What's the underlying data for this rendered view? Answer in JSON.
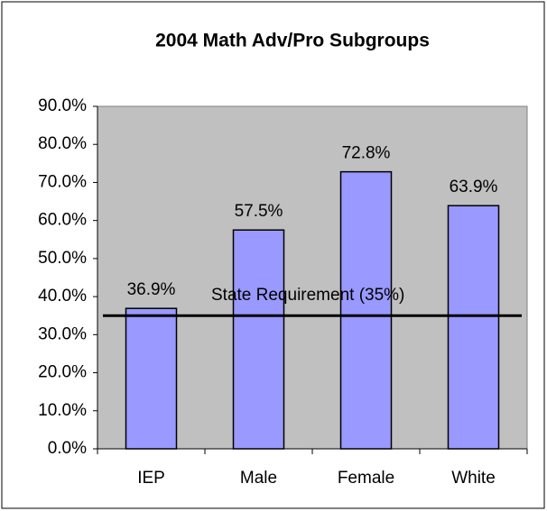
{
  "chart_data": {
    "type": "bar",
    "title": "2004 Math Adv/Pro Subgroups",
    "categories": [
      "IEP",
      "Male",
      "Female",
      "White"
    ],
    "values": [
      36.9,
      57.5,
      72.8,
      63.9
    ],
    "value_labels": [
      "36.9%",
      "57.5%",
      "72.8%",
      "63.9%"
    ],
    "color": "#9999ff",
    "ylim": [
      0,
      90
    ],
    "yticks": [
      {
        "value": 0,
        "label": "0.0%"
      },
      {
        "value": 10,
        "label": "10.0%"
      },
      {
        "value": 20,
        "label": "20.0%"
      },
      {
        "value": 30,
        "label": "30.0%"
      },
      {
        "value": 40,
        "label": "40.0%"
      },
      {
        "value": 50,
        "label": "50.0%"
      },
      {
        "value": 60,
        "label": "60.0%"
      },
      {
        "value": 70,
        "label": "70.0%"
      },
      {
        "value": 80,
        "label": "80.0%"
      },
      {
        "value": 90,
        "label": "90.0%"
      }
    ],
    "reference_line": {
      "value": 35,
      "label": "State Requirement (35%)",
      "color": "#000000"
    },
    "plot_background": "#c0c0c0"
  }
}
